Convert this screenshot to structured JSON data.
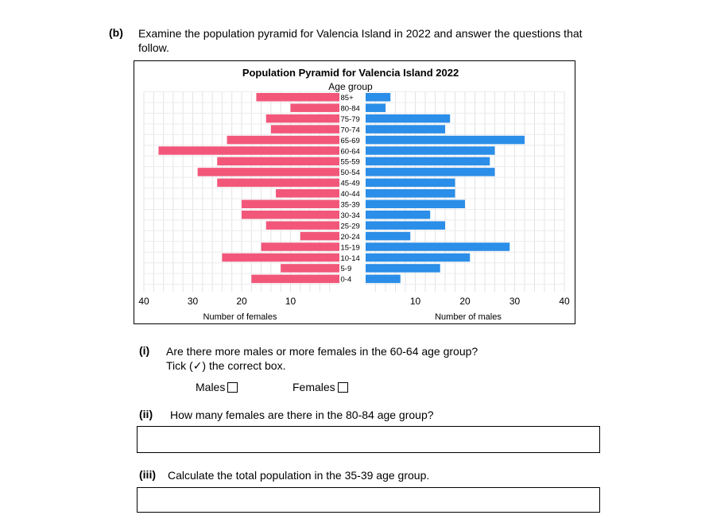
{
  "part_b": {
    "label": "(b)",
    "line1": "Examine the population pyramid for Valencia Island in 2022 and answer the questions that",
    "line2": "follow."
  },
  "chart_data": {
    "type": "bar",
    "orientation": "horizontal-pyramid",
    "title": "Population Pyramid for Valencia Island 2022",
    "category_axis_label": "Age group",
    "categories": [
      "85+",
      "80-84",
      "75-79",
      "70-74",
      "65-69",
      "60-64",
      "55-59",
      "50-54",
      "45-49",
      "40-44",
      "35-39",
      "30-34",
      "25-29",
      "20-24",
      "15-19",
      "10-14",
      "5-9",
      "0-4"
    ],
    "series": [
      {
        "name": "Females",
        "color": "#f2577a",
        "values": [
          17,
          10,
          15,
          14,
          23,
          37,
          25,
          29,
          25,
          13,
          20,
          20,
          15,
          8,
          16,
          24,
          12,
          18
        ]
      },
      {
        "name": "Males",
        "color": "#2b8ee8",
        "values": [
          5,
          4,
          17,
          16,
          32,
          26,
          25,
          26,
          18,
          18,
          20,
          13,
          16,
          9,
          29,
          21,
          15,
          7
        ]
      }
    ],
    "female_axis": {
      "label": "Number of females",
      "ticks": [
        "40",
        "30",
        "20",
        "10"
      ],
      "range": [
        0,
        40
      ]
    },
    "male_axis": {
      "label": "Number of males",
      "ticks": [
        "10",
        "20",
        "30",
        "40"
      ],
      "range": [
        0,
        40
      ]
    },
    "grid": true
  },
  "q_i": {
    "label": "(i)",
    "line1": "Are there more males or more females in the 60-64 age group?",
    "line2": "Tick (✓) the correct box.",
    "option_males": "Males",
    "option_females": "Females"
  },
  "q_ii": {
    "label": "(ii)",
    "text": "How many females are there in the 80-84 age group?"
  },
  "q_iii": {
    "label": "(iii)",
    "text": "Calculate the total population in the 35-39 age group."
  }
}
